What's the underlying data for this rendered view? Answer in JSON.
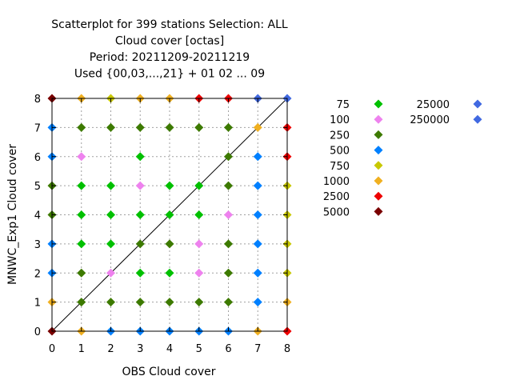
{
  "chart_data": {
    "type": "scatter",
    "title_lines": [
      "Scatterplot for  399 stations Selection: ALL",
      "Cloud cover [octas]",
      "Period: 20211209-20211219",
      "Used {00,03,...,21} + 01 02 ... 09"
    ],
    "xlabel": "OBS Cloud cover",
    "ylabel": "MNWC_Exp1 Cloud cover",
    "xlim": [
      0,
      8
    ],
    "ylim": [
      0,
      8
    ],
    "x_ticks": [
      "0",
      "1",
      "2",
      "3",
      "4",
      "5",
      "6",
      "7",
      "8"
    ],
    "y_ticks": [
      "0",
      "1",
      "2",
      "3",
      "4",
      "5",
      "6",
      "7",
      "8"
    ],
    "grid": true,
    "diagonal_line": true,
    "legend_position": "right",
    "series": [
      {
        "name": "75",
        "color": "#00c000",
        "points": [
          [
            1,
            5
          ],
          [
            1,
            4
          ],
          [
            1,
            3
          ],
          [
            2,
            5
          ],
          [
            2,
            4
          ],
          [
            2,
            3
          ],
          [
            3,
            6
          ],
          [
            3,
            4
          ],
          [
            3,
            2
          ],
          [
            4,
            5
          ],
          [
            4,
            4
          ],
          [
            4,
            2
          ],
          [
            5,
            5
          ],
          [
            5,
            4
          ]
        ]
      },
      {
        "name": "100",
        "color": "#ee82ee",
        "points": [
          [
            1,
            6
          ],
          [
            2,
            2
          ],
          [
            3,
            5
          ],
          [
            5,
            3
          ],
          [
            5,
            2
          ],
          [
            6,
            4
          ]
        ]
      },
      {
        "name": "250",
        "color": "#3d7a00",
        "points": [
          [
            0,
            5
          ],
          [
            0,
            4
          ],
          [
            1,
            7
          ],
          [
            1,
            2
          ],
          [
            1,
            1
          ],
          [
            2,
            7
          ],
          [
            2,
            1
          ],
          [
            3,
            7
          ],
          [
            3,
            3
          ],
          [
            3,
            1
          ],
          [
            4,
            7
          ],
          [
            4,
            3
          ],
          [
            4,
            1
          ],
          [
            5,
            7
          ],
          [
            5,
            1
          ],
          [
            6,
            7
          ],
          [
            6,
            6
          ],
          [
            6,
            5
          ],
          [
            6,
            3
          ],
          [
            6,
            2
          ],
          [
            6,
            1
          ]
        ]
      },
      {
        "name": "500",
        "color": "#0080ff",
        "points": [
          [
            0,
            7
          ],
          [
            0,
            6
          ],
          [
            0,
            3
          ],
          [
            0,
            2
          ],
          [
            2,
            0
          ],
          [
            3,
            0
          ],
          [
            4,
            0
          ],
          [
            5,
            0
          ],
          [
            6,
            0
          ],
          [
            7,
            6
          ],
          [
            7,
            5
          ],
          [
            7,
            4
          ],
          [
            7,
            3
          ],
          [
            7,
            2
          ],
          [
            7,
            1
          ]
        ]
      },
      {
        "name": "750",
        "color": "#c8c800",
        "points": [
          [
            2,
            8
          ],
          [
            8,
            5
          ],
          [
            8,
            4
          ],
          [
            8,
            3
          ],
          [
            8,
            2
          ]
        ]
      },
      {
        "name": "1000",
        "color": "#f0b020",
        "points": [
          [
            0,
            1
          ],
          [
            1,
            8
          ],
          [
            1,
            0
          ],
          [
            3,
            8
          ],
          [
            4,
            8
          ],
          [
            7,
            7
          ],
          [
            7,
            0
          ],
          [
            8,
            1
          ]
        ]
      },
      {
        "name": "2500",
        "color": "#ee0000",
        "points": [
          [
            5,
            8
          ],
          [
            6,
            8
          ],
          [
            8,
            7
          ],
          [
            8,
            6
          ],
          [
            8,
            0
          ]
        ]
      },
      {
        "name": "5000",
        "color": "#7a0000",
        "points": [
          [
            0,
            8
          ],
          [
            0,
            0
          ]
        ]
      },
      {
        "name": "25000",
        "color": "#4169e1",
        "points": [
          [
            7,
            8
          ]
        ]
      },
      {
        "name": "250000",
        "color": "#4169e1",
        "points": [
          [
            8,
            8
          ]
        ]
      }
    ]
  }
}
